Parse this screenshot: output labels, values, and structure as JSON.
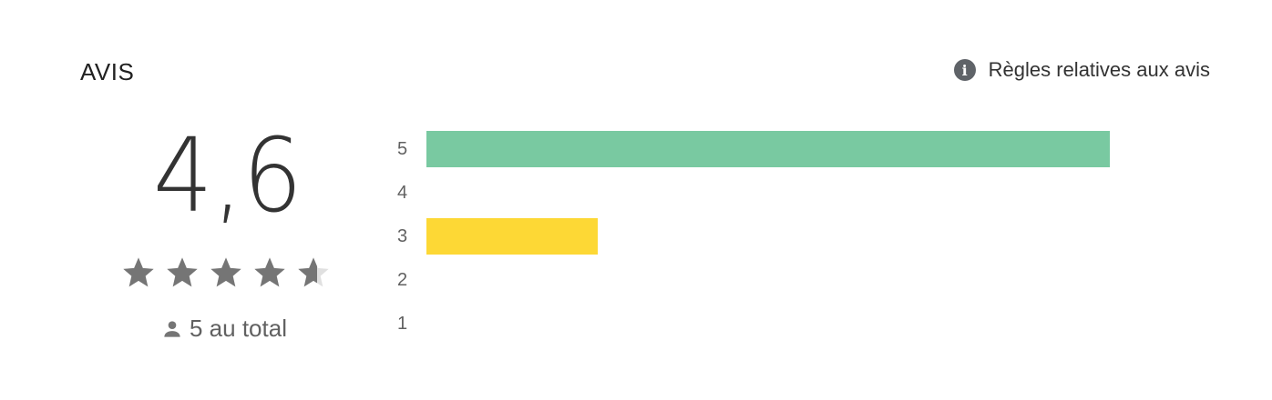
{
  "header": {
    "title": "AVIS",
    "policy_link": "Règles relatives aux avis",
    "policy_icon": "info-icon"
  },
  "summary": {
    "average": "4,6",
    "rating_value": 4.6,
    "max_stars": 5,
    "total_label": "5 au total",
    "total_icon": "person-icon",
    "star_color": "#757575",
    "star_empty_color": "#e0e0e0"
  },
  "histogram": [
    {
      "label": "5",
      "count": 4,
      "color": "#79c9a1"
    },
    {
      "label": "4",
      "count": 0,
      "color": "#aed581"
    },
    {
      "label": "3",
      "count": 1,
      "color": "#fdd835"
    },
    {
      "label": "2",
      "count": 0,
      "color": "#ffb74d"
    },
    {
      "label": "1",
      "count": 0,
      "color": "#ff8a65"
    }
  ]
}
